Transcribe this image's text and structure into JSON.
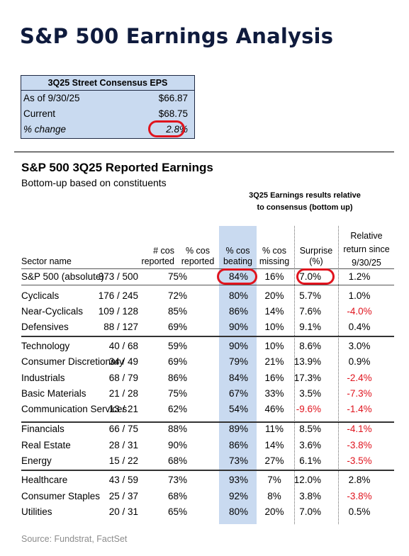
{
  "page_title": "S&P 500 Earnings Analysis",
  "consensus": {
    "title": "3Q25 Street Consensus EPS",
    "rows": [
      {
        "label": "As of 9/30/25",
        "value": "$66.87"
      },
      {
        "label": "Current",
        "value": "$68.75"
      },
      {
        "label": "% change",
        "value": "2.8%"
      }
    ]
  },
  "section": {
    "title": "S&P 500 3Q25 Reported Earnings",
    "subtitle": "Bottom-up based on constituents",
    "group_header_line1": "3Q25 Earnings results relative",
    "group_header_line2": "to consensus (bottom up)"
  },
  "headers": {
    "sector": "Sector name",
    "reported_1": "# cos",
    "reported_2": "reported",
    "pct_reported_1": "% cos",
    "pct_reported_2": "reported",
    "beating_1": "% cos",
    "beating_2": "beating",
    "missing_1": "% cos",
    "missing_2": "missing",
    "surprise_1": "Surprise",
    "surprise_2": "(%)",
    "relative_1": "Relative",
    "relative_2": "return since",
    "relative_3": "9/30/25"
  },
  "rows": [
    {
      "name": "S&P 500 (absolute)",
      "reported": "373 / 500",
      "pct_reported": "75%",
      "beating": "84%",
      "missing": "16%",
      "surprise": "7.0%",
      "relative": "1.2%"
    },
    {
      "name": "Cyclicals",
      "reported": "176 / 245",
      "pct_reported": "72%",
      "beating": "80%",
      "missing": "20%",
      "surprise": "5.7%",
      "relative": "1.0%"
    },
    {
      "name": "Near-Cyclicals",
      "reported": "109 / 128",
      "pct_reported": "85%",
      "beating": "86%",
      "missing": "14%",
      "surprise": "7.6%",
      "relative": "-4.0%"
    },
    {
      "name": "Defensives",
      "reported": "88 / 127",
      "pct_reported": "69%",
      "beating": "90%",
      "missing": "10%",
      "surprise": "9.1%",
      "relative": "0.4%"
    },
    {
      "name": "Technology",
      "reported": "40 / 68",
      "pct_reported": "59%",
      "beating": "90%",
      "missing": "10%",
      "surprise": "8.6%",
      "relative": "3.0%"
    },
    {
      "name": "Consumer Discretionary",
      "reported": "34 / 49",
      "pct_reported": "69%",
      "beating": "79%",
      "missing": "21%",
      "surprise": "13.9%",
      "relative": "0.9%"
    },
    {
      "name": "Industrials",
      "reported": "68 / 79",
      "pct_reported": "86%",
      "beating": "84%",
      "missing": "16%",
      "surprise": "17.3%",
      "relative": "-2.4%"
    },
    {
      "name": "Basic Materials",
      "reported": "21 / 28",
      "pct_reported": "75%",
      "beating": "67%",
      "missing": "33%",
      "surprise": "3.5%",
      "relative": "-7.3%"
    },
    {
      "name": "Communication Services",
      "reported": "13 / 21",
      "pct_reported": "62%",
      "beating": "54%",
      "missing": "46%",
      "surprise": "-9.6%",
      "relative": "-1.4%"
    },
    {
      "name": "Financials",
      "reported": "66 / 75",
      "pct_reported": "88%",
      "beating": "89%",
      "missing": "11%",
      "surprise": "8.5%",
      "relative": "-4.1%"
    },
    {
      "name": "Real Estate",
      "reported": "28 / 31",
      "pct_reported": "90%",
      "beating": "86%",
      "missing": "14%",
      "surprise": "3.6%",
      "relative": "-3.8%"
    },
    {
      "name": "Energy",
      "reported": "15 / 22",
      "pct_reported": "68%",
      "beating": "73%",
      "missing": "27%",
      "surprise": "6.1%",
      "relative": "-3.5%"
    },
    {
      "name": "Healthcare",
      "reported": "43 / 59",
      "pct_reported": "73%",
      "beating": "93%",
      "missing": "7%",
      "surprise": "12.0%",
      "relative": "2.8%"
    },
    {
      "name": "Consumer Staples",
      "reported": "25 / 37",
      "pct_reported": "68%",
      "beating": "92%",
      "missing": "8%",
      "surprise": "3.8%",
      "relative": "-3.8%"
    },
    {
      "name": "Utilities",
      "reported": "20 / 31",
      "pct_reported": "65%",
      "beating": "80%",
      "missing": "20%",
      "surprise": "7.0%",
      "relative": "0.5%"
    }
  ],
  "source": "Source: Fundstrat, FactSet",
  "colors": {
    "highlight": "#c9daf0",
    "circle": "#e0141e",
    "negative": "#e0141e",
    "title": "#0f1b3d"
  }
}
